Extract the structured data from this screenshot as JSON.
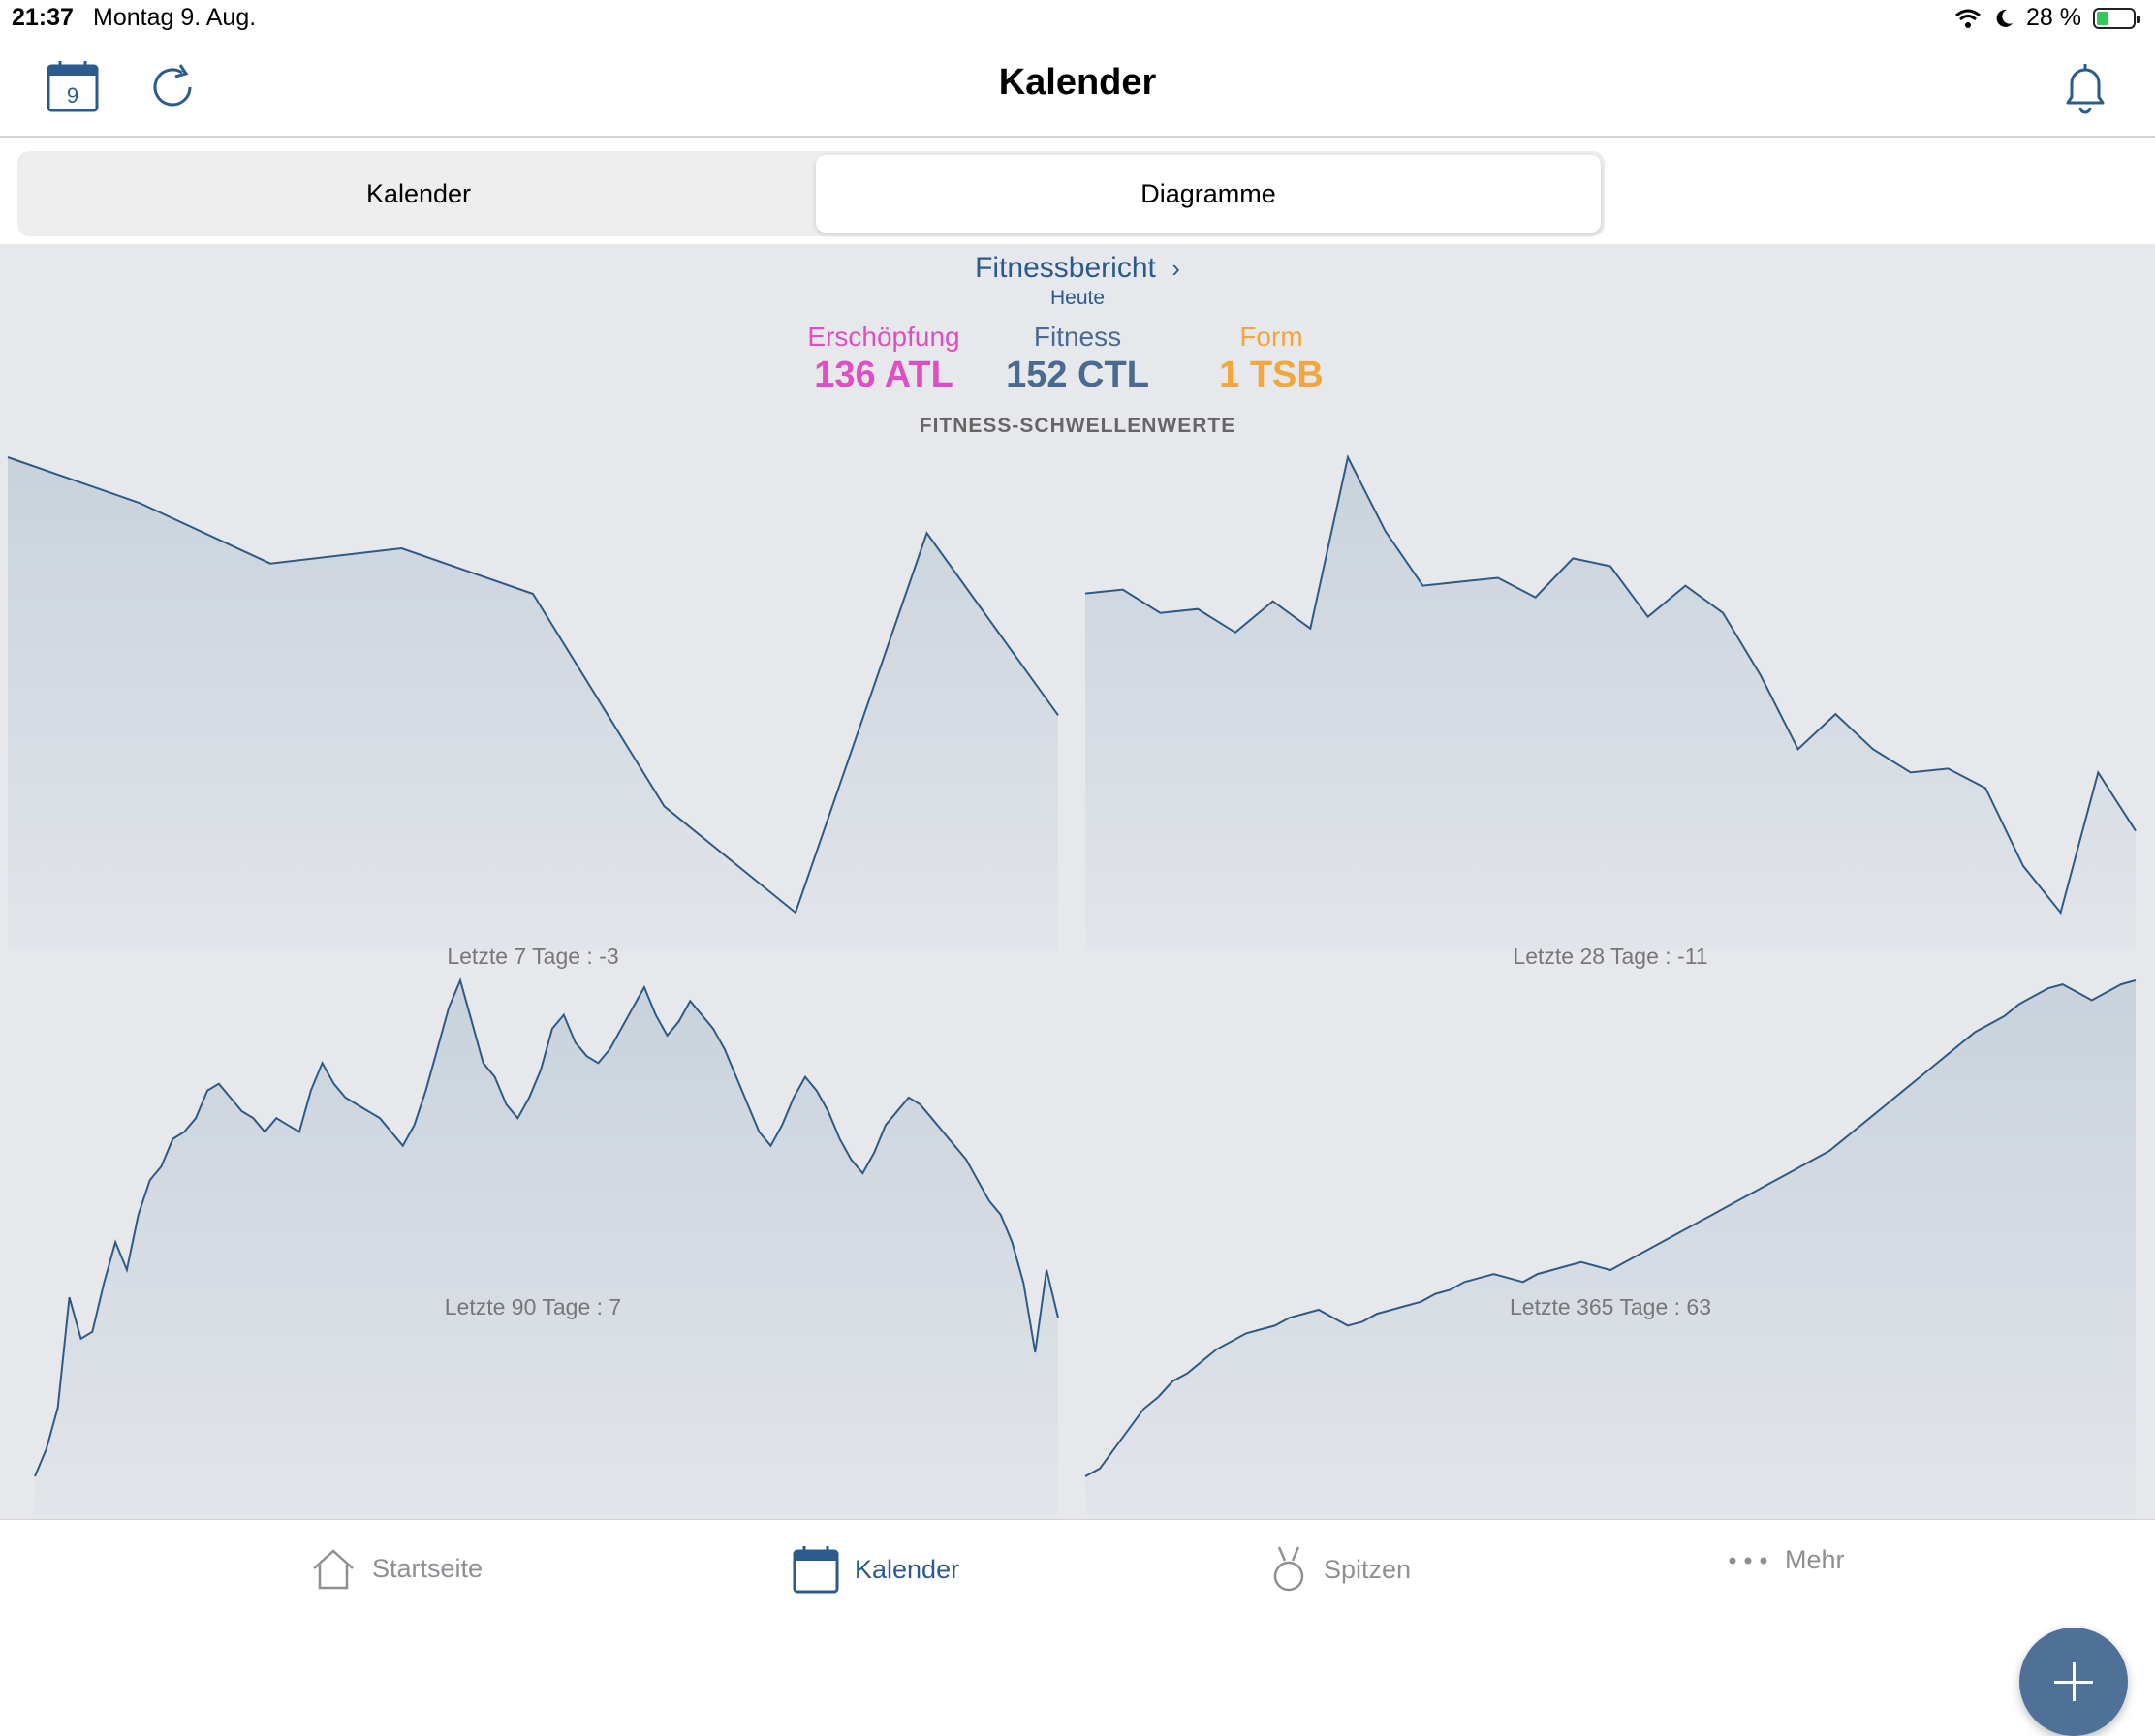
{
  "status": {
    "time": "21:37",
    "date": "Montag 9. Aug.",
    "battery": "28 %"
  },
  "navbar": {
    "title": "Kalender",
    "calendar_day": "9"
  },
  "segmented": {
    "left": "Kalender",
    "right": "Diagramme",
    "selected": "Diagramme"
  },
  "report": {
    "title": "Fitnessbericht",
    "subtitle": "Heute",
    "metrics": [
      {
        "label": "Erschöpfung",
        "value": "136 ATL",
        "color": "#e04fc1"
      },
      {
        "label": "Fitness",
        "value": "152 CTL",
        "color": "#4a6a92"
      },
      {
        "label": "Form",
        "value": "1 TSB",
        "color": "#f2a73c"
      }
    ],
    "section": "FITNESS-SCHWELLENWERTE"
  },
  "chart_data": [
    {
      "type": "area",
      "caption": "Letzte 7 Tage : -3",
      "values": [
        7,
        4,
        0,
        1,
        -2,
        -16,
        -23,
        2,
        -10
      ]
    },
    {
      "type": "area",
      "caption": "Letzte 28 Tage : -11",
      "values": [
        21,
        22,
        16,
        17,
        11,
        19,
        12,
        56,
        37,
        23,
        24,
        25,
        20,
        30,
        28,
        15,
        23,
        16,
        0,
        -19,
        -10,
        -19,
        -25,
        -24,
        -29,
        -49,
        -61,
        -25,
        -40
      ]
    },
    {
      "type": "area",
      "caption": "Letzte 90 Tage : 7",
      "values": [
        -38,
        -34,
        -28,
        -12,
        -18,
        -17,
        -10,
        -4,
        -8,
        0,
        5,
        7,
        11,
        12,
        14,
        18,
        19,
        17,
        15,
        14,
        12,
        14,
        13,
        12,
        18,
        22,
        19,
        17,
        16,
        15,
        14,
        12,
        10,
        13,
        18,
        24,
        30,
        34,
        28,
        22,
        20,
        16,
        14,
        17,
        21,
        27,
        29,
        25,
        23,
        22,
        24,
        27,
        30,
        33,
        29,
        26,
        28,
        31,
        29,
        27,
        24,
        20,
        16,
        12,
        10,
        13,
        17,
        20,
        18,
        15,
        11,
        8,
        6,
        9,
        13,
        15,
        17,
        16,
        14,
        12,
        10,
        8,
        5,
        2,
        0,
        -4,
        -10,
        -20,
        -8,
        -15
      ]
    },
    {
      "type": "area",
      "caption": "Letzte 365 Tage : 63",
      "values": [
        -62,
        -60,
        -55,
        -50,
        -45,
        -42,
        -38,
        -36,
        -33,
        -30,
        -28,
        -26,
        -25,
        -24,
        -22,
        -21,
        -20,
        -22,
        -24,
        -23,
        -21,
        -20,
        -19,
        -18,
        -16,
        -15,
        -13,
        -12,
        -11,
        -12,
        -13,
        -11,
        -10,
        -9,
        -8,
        -9,
        -10,
        -8,
        -6,
        -4,
        -2,
        0,
        2,
        4,
        6,
        8,
        10,
        12,
        14,
        16,
        18,
        20,
        23,
        26,
        29,
        32,
        35,
        38,
        41,
        44,
        47,
        50,
        52,
        54,
        57,
        59,
        61,
        62,
        60,
        58,
        60,
        62,
        63
      ]
    }
  ],
  "tabs": [
    {
      "label": "Startseite",
      "icon": "house-icon"
    },
    {
      "label": "Kalender",
      "icon": "calendar-icon",
      "active": true
    },
    {
      "label": "Spitzen",
      "icon": "medal-icon"
    },
    {
      "label": "Mehr",
      "icon": "ellipsis-icon"
    }
  ],
  "colors": {
    "line": "#2e5a86",
    "fill": "#c9d2dc",
    "bg": "#e6e8ec"
  }
}
